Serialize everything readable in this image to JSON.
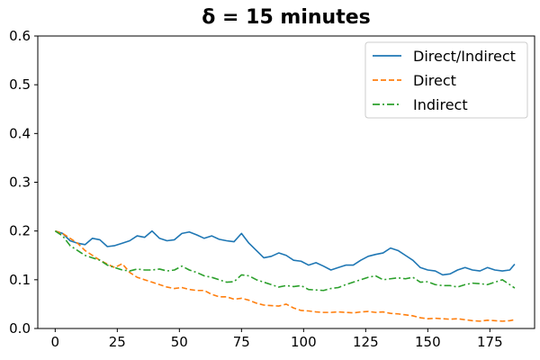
{
  "chart_data": {
    "type": "line",
    "title": "δ = 15 minutes",
    "xlabel": "",
    "ylabel": "",
    "xlim": [
      -7,
      193
    ],
    "ylim": [
      0,
      0.6
    ],
    "x_ticks": [
      0,
      25,
      50,
      75,
      100,
      125,
      150,
      175
    ],
    "x_tick_labels": [
      "0",
      "25",
      "50",
      "75",
      "100",
      "125",
      "150",
      "175"
    ],
    "y_ticks": [
      0.0,
      0.1,
      0.2,
      0.3,
      0.4,
      0.5,
      0.6
    ],
    "y_tick_labels": [
      "0.0",
      "0.1",
      "0.2",
      "0.3",
      "0.4",
      "0.5",
      "0.6"
    ],
    "grid": false,
    "legend_position": "top-right",
    "series": [
      {
        "name": "Direct/Indirect",
        "color": "#1f77b4",
        "style": "solid",
        "x": [
          0,
          3,
          6,
          9,
          12,
          15,
          18,
          21,
          24,
          27,
          30,
          33,
          36,
          39,
          42,
          45,
          48,
          51,
          54,
          57,
          60,
          63,
          66,
          69,
          72,
          75,
          78,
          81,
          84,
          87,
          90,
          93,
          96,
          99,
          102,
          105,
          108,
          111,
          114,
          117,
          120,
          123,
          126,
          129,
          132,
          135,
          138,
          141,
          144,
          147,
          150,
          153,
          156,
          159,
          162,
          165,
          168,
          171,
          174,
          177,
          180,
          183,
          185
        ],
        "y": [
          0.2,
          0.195,
          0.18,
          0.175,
          0.172,
          0.185,
          0.182,
          0.168,
          0.17,
          0.175,
          0.18,
          0.19,
          0.187,
          0.2,
          0.185,
          0.18,
          0.182,
          0.195,
          0.198,
          0.192,
          0.185,
          0.19,
          0.183,
          0.18,
          0.178,
          0.195,
          0.175,
          0.16,
          0.145,
          0.148,
          0.155,
          0.15,
          0.14,
          0.138,
          0.13,
          0.135,
          0.128,
          0.12,
          0.125,
          0.13,
          0.13,
          0.14,
          0.148,
          0.152,
          0.155,
          0.165,
          0.16,
          0.15,
          0.14,
          0.125,
          0.12,
          0.118,
          0.11,
          0.112,
          0.12,
          0.125,
          0.12,
          0.118,
          0.125,
          0.12,
          0.118,
          0.12,
          0.132
        ]
      },
      {
        "name": "Direct",
        "color": "#ff7f0e",
        "style": "dashed",
        "x": [
          0,
          3,
          6,
          9,
          12,
          15,
          18,
          21,
          24,
          27,
          30,
          33,
          36,
          39,
          42,
          45,
          48,
          51,
          54,
          57,
          60,
          63,
          66,
          69,
          72,
          75,
          78,
          81,
          84,
          87,
          90,
          93,
          96,
          99,
          102,
          105,
          108,
          111,
          114,
          117,
          120,
          123,
          126,
          129,
          132,
          135,
          138,
          141,
          144,
          147,
          150,
          153,
          156,
          159,
          162,
          165,
          168,
          171,
          174,
          177,
          180,
          183,
          185
        ],
        "y": [
          0.2,
          0.195,
          0.185,
          0.175,
          0.16,
          0.15,
          0.14,
          0.132,
          0.125,
          0.133,
          0.115,
          0.105,
          0.1,
          0.095,
          0.09,
          0.085,
          0.082,
          0.084,
          0.08,
          0.078,
          0.078,
          0.07,
          0.065,
          0.065,
          0.06,
          0.062,
          0.058,
          0.052,
          0.048,
          0.047,
          0.046,
          0.05,
          0.042,
          0.037,
          0.036,
          0.034,
          0.033,
          0.033,
          0.034,
          0.033,
          0.032,
          0.034,
          0.035,
          0.033,
          0.034,
          0.031,
          0.03,
          0.028,
          0.026,
          0.022,
          0.02,
          0.021,
          0.02,
          0.019,
          0.02,
          0.018,
          0.016,
          0.015,
          0.017,
          0.016,
          0.015,
          0.016,
          0.018
        ]
      },
      {
        "name": "Indirect",
        "color": "#2ca02c",
        "style": "dashdot",
        "x": [
          0,
          3,
          6,
          9,
          12,
          15,
          18,
          21,
          24,
          27,
          30,
          33,
          36,
          39,
          42,
          45,
          48,
          51,
          54,
          57,
          60,
          63,
          66,
          69,
          72,
          75,
          78,
          81,
          84,
          87,
          90,
          93,
          96,
          99,
          102,
          105,
          108,
          111,
          114,
          117,
          120,
          123,
          126,
          129,
          132,
          135,
          138,
          141,
          144,
          147,
          150,
          153,
          156,
          159,
          162,
          165,
          168,
          171,
          174,
          177,
          180,
          183,
          185
        ],
        "y": [
          0.2,
          0.19,
          0.17,
          0.16,
          0.15,
          0.145,
          0.14,
          0.13,
          0.125,
          0.12,
          0.118,
          0.122,
          0.12,
          0.12,
          0.122,
          0.118,
          0.12,
          0.128,
          0.12,
          0.115,
          0.108,
          0.105,
          0.1,
          0.095,
          0.096,
          0.11,
          0.108,
          0.1,
          0.095,
          0.09,
          0.085,
          0.088,
          0.086,
          0.088,
          0.08,
          0.079,
          0.078,
          0.082,
          0.084,
          0.09,
          0.095,
          0.1,
          0.105,
          0.108,
          0.1,
          0.102,
          0.104,
          0.102,
          0.105,
          0.095,
          0.096,
          0.09,
          0.088,
          0.088,
          0.085,
          0.09,
          0.093,
          0.092,
          0.09,
          0.095,
          0.1,
          0.09,
          0.083
        ]
      }
    ]
  }
}
